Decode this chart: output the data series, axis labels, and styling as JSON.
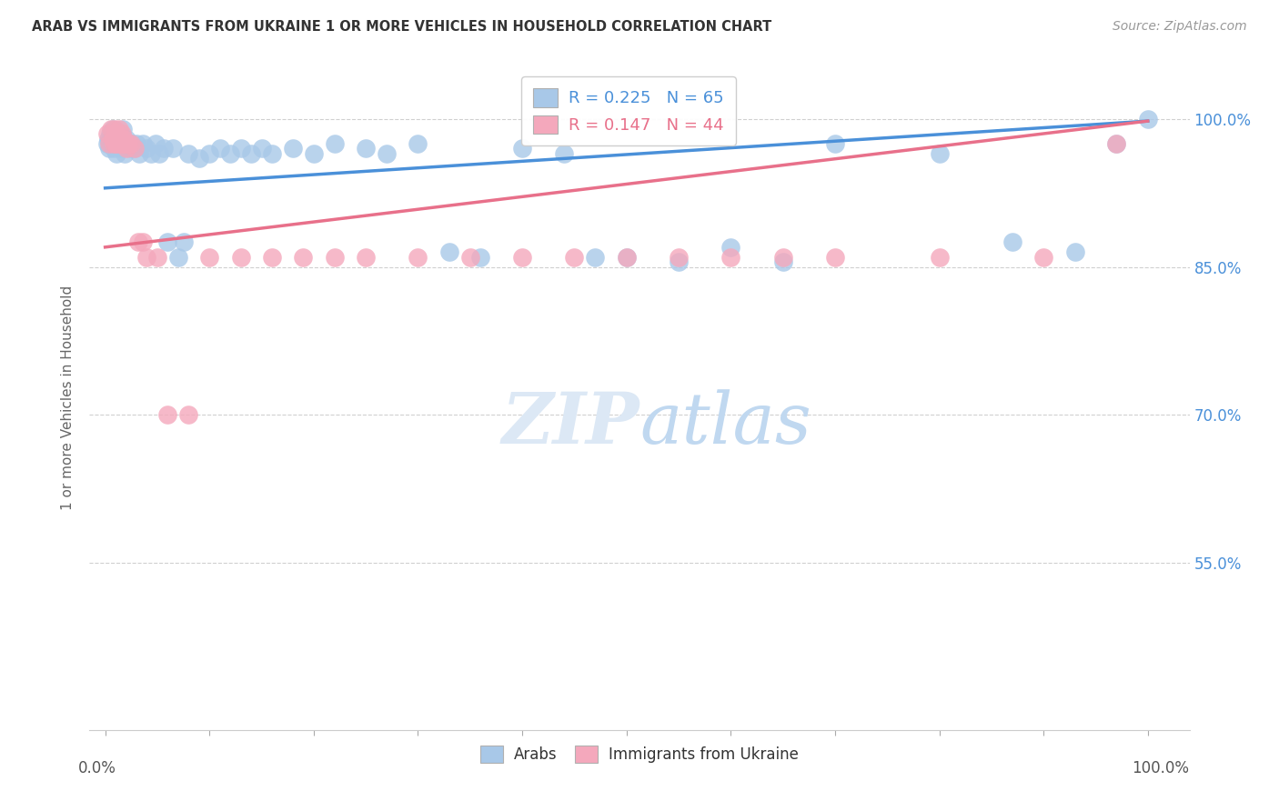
{
  "title": "ARAB VS IMMIGRANTS FROM UKRAINE 1 OR MORE VEHICLES IN HOUSEHOLD CORRELATION CHART",
  "source": "Source: ZipAtlas.com",
  "ylabel": "1 or more Vehicles in Household",
  "legend_arab_label": "Arabs",
  "legend_ukraine_label": "Immigrants from Ukraine",
  "R_arab": 0.225,
  "N_arab": 65,
  "R_ukraine": 0.147,
  "N_ukraine": 44,
  "arab_color": "#a8c8e8",
  "ukraine_color": "#f4a8bc",
  "arab_line_color": "#4a90d9",
  "ukraine_line_color": "#e8708a",
  "right_axis_color": "#4a90d9",
  "background_color": "#ffffff",
  "grid_color": "#d0d0d0",
  "ylim_low": 0.38,
  "ylim_high": 1.055,
  "xlim_low": -0.015,
  "xlim_high": 1.04,
  "arab_x": [
    0.002,
    0.003,
    0.004,
    0.005,
    0.006,
    0.007,
    0.008,
    0.009,
    0.01,
    0.011,
    0.012,
    0.013,
    0.014,
    0.015,
    0.016,
    0.017,
    0.018,
    0.019,
    0.02,
    0.022,
    0.024,
    0.026,
    0.028,
    0.03,
    0.033,
    0.036,
    0.04,
    0.044,
    0.048,
    0.052,
    0.056,
    0.06,
    0.065,
    0.07,
    0.075,
    0.08,
    0.09,
    0.1,
    0.11,
    0.12,
    0.13,
    0.14,
    0.15,
    0.16,
    0.18,
    0.2,
    0.22,
    0.25,
    0.27,
    0.3,
    0.33,
    0.36,
    0.4,
    0.44,
    0.47,
    0.5,
    0.55,
    0.6,
    0.65,
    0.7,
    0.8,
    0.87,
    0.93,
    0.97,
    1.0
  ],
  "arab_y": [
    0.975,
    0.98,
    0.97,
    0.985,
    0.975,
    0.99,
    0.97,
    0.98,
    0.975,
    0.965,
    0.98,
    0.975,
    0.985,
    0.97,
    0.975,
    0.99,
    0.975,
    0.965,
    0.98,
    0.975,
    0.97,
    0.975,
    0.97,
    0.975,
    0.965,
    0.975,
    0.97,
    0.965,
    0.975,
    0.965,
    0.97,
    0.875,
    0.97,
    0.86,
    0.875,
    0.965,
    0.96,
    0.965,
    0.97,
    0.965,
    0.97,
    0.965,
    0.97,
    0.965,
    0.97,
    0.965,
    0.975,
    0.97,
    0.965,
    0.975,
    0.865,
    0.86,
    0.97,
    0.965,
    0.86,
    0.86,
    0.855,
    0.87,
    0.855,
    0.975,
    0.965,
    0.875,
    0.865,
    0.975,
    1.0
  ],
  "ukraine_x": [
    0.002,
    0.004,
    0.006,
    0.007,
    0.008,
    0.009,
    0.01,
    0.011,
    0.012,
    0.013,
    0.014,
    0.015,
    0.016,
    0.017,
    0.018,
    0.019,
    0.02,
    0.022,
    0.025,
    0.028,
    0.032,
    0.036,
    0.04,
    0.05,
    0.06,
    0.08,
    0.1,
    0.13,
    0.16,
    0.19,
    0.22,
    0.25,
    0.3,
    0.35,
    0.4,
    0.45,
    0.5,
    0.55,
    0.6,
    0.65,
    0.7,
    0.8,
    0.9,
    0.97
  ],
  "ukraine_y": [
    0.985,
    0.975,
    0.99,
    0.98,
    0.975,
    0.99,
    0.975,
    0.985,
    0.975,
    0.99,
    0.98,
    0.975,
    0.985,
    0.975,
    0.98,
    0.975,
    0.97,
    0.975,
    0.975,
    0.97,
    0.875,
    0.875,
    0.86,
    0.86,
    0.7,
    0.7,
    0.86,
    0.86,
    0.86,
    0.86,
    0.86,
    0.86,
    0.86,
    0.86,
    0.86,
    0.86,
    0.86,
    0.86,
    0.86,
    0.86,
    0.86,
    0.86,
    0.86,
    0.975
  ],
  "blue_line_x0": 0.0,
  "blue_line_y0": 0.93,
  "blue_line_x1": 1.0,
  "blue_line_y1": 0.998,
  "pink_line_x0": 0.0,
  "pink_line_y0": 0.87,
  "pink_line_x1": 1.0,
  "pink_line_y1": 0.998
}
